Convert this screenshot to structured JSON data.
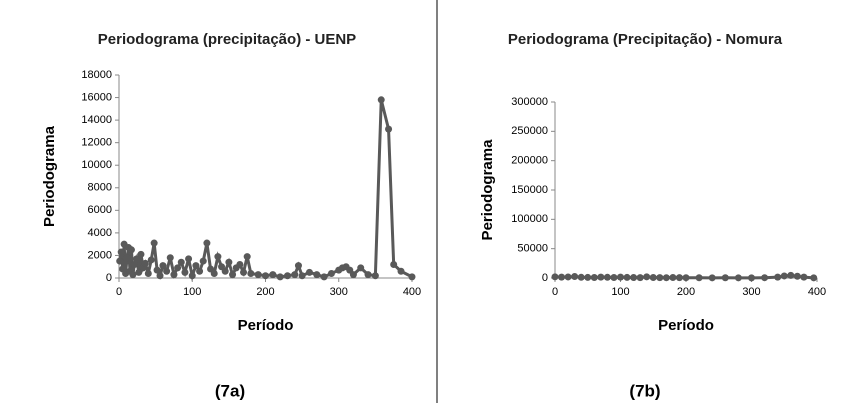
{
  "chart_data": [
    {
      "type": "line",
      "title": "Periodograma (precipitação) - UENP",
      "x_label": "Período",
      "y_label": "Periodograma",
      "caption": "(7a)",
      "xlim": [
        0,
        400
      ],
      "xticks": [
        0,
        100,
        200,
        300,
        400
      ],
      "ylim": [
        0,
        18000
      ],
      "yticks": [
        0,
        2000,
        4000,
        6000,
        8000,
        10000,
        12000,
        14000,
        16000,
        18000
      ],
      "series": [
        {
          "color": "#595959",
          "x": [
            1,
            3,
            5,
            7,
            9,
            11,
            13,
            15,
            17,
            19,
            21,
            24,
            27,
            30,
            33,
            36,
            40,
            44,
            48,
            52,
            56,
            60,
            65,
            70,
            75,
            80,
            85,
            90,
            95,
            100,
            105,
            110,
            115,
            120,
            125,
            130,
            135,
            140,
            145,
            150,
            155,
            160,
            165,
            170,
            175,
            180,
            190,
            200,
            210,
            220,
            230,
            240,
            245,
            250,
            260,
            270,
            280,
            290,
            300,
            305,
            310,
            315,
            320,
            330,
            340,
            350,
            358,
            368,
            375,
            385,
            400
          ],
          "values": [
            1500,
            2300,
            800,
            3000,
            400,
            1800,
            2700,
            600,
            2500,
            300,
            1200,
            1700,
            500,
            2100,
            900,
            1300,
            400,
            1600,
            3100,
            700,
            200,
            1100,
            600,
            1800,
            300,
            900,
            1400,
            500,
            1700,
            200,
            1100,
            600,
            1500,
            3100,
            800,
            400,
            1900,
            1000,
            600,
            1400,
            300,
            900,
            1200,
            500,
            1900,
            400,
            300,
            200,
            300,
            100,
            200,
            300,
            1100,
            200,
            500,
            300,
            100,
            400,
            700,
            900,
            1000,
            700,
            300,
            900,
            300,
            200,
            15800,
            13200,
            1200,
            600,
            100
          ]
        }
      ]
    },
    {
      "type": "line",
      "title": "Periodograma (Precipitação) - Nomura",
      "x_label": "Período",
      "y_label": "Periodograma",
      "caption": "(7b)",
      "xlim": [
        0,
        400
      ],
      "xticks": [
        0,
        100,
        200,
        300,
        400
      ],
      "ylim": [
        0,
        300000
      ],
      "yticks": [
        0,
        50000,
        100000,
        150000,
        200000,
        250000,
        300000
      ],
      "series": [
        {
          "color": "#595959",
          "x": [
            0,
            10,
            20,
            30,
            40,
            50,
            60,
            70,
            80,
            90,
            100,
            110,
            120,
            130,
            140,
            150,
            160,
            170,
            180,
            190,
            200,
            220,
            240,
            260,
            280,
            300,
            320,
            340,
            350,
            360,
            370,
            380,
            395
          ],
          "values": [
            2000,
            1500,
            1800,
            2500,
            1200,
            1000,
            800,
            1500,
            1200,
            900,
            1500,
            1000,
            800,
            600,
            2000,
            900,
            700,
            500,
            800,
            600,
            500,
            400,
            300,
            400,
            300,
            200,
            500,
            1500,
            3500,
            4500,
            3000,
            1500,
            300
          ]
        }
      ]
    }
  ]
}
